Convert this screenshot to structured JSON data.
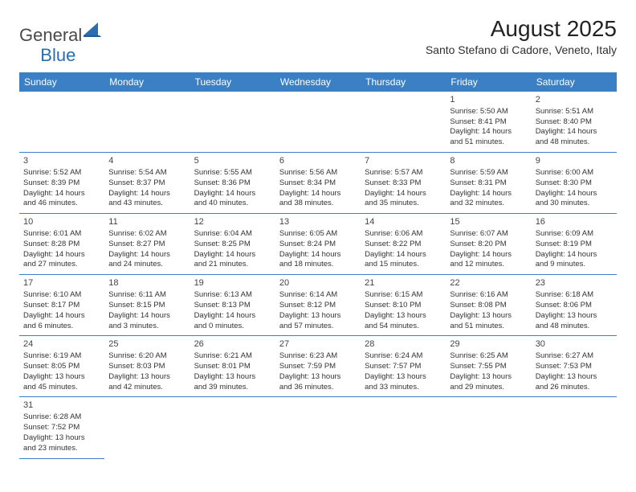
{
  "logo": {
    "general": "General",
    "blue": "Blue"
  },
  "title": "August 2025",
  "location": "Santo Stefano di Cadore, Veneto, Italy",
  "colors": {
    "header_bg": "#3b7fc4",
    "header_text": "#ffffff",
    "border": "#3b7fc4",
    "text": "#333333",
    "logo_blue": "#2a6db0"
  },
  "weekdays": [
    "Sunday",
    "Monday",
    "Tuesday",
    "Wednesday",
    "Thursday",
    "Friday",
    "Saturday"
  ],
  "weeks": [
    [
      null,
      null,
      null,
      null,
      null,
      {
        "d": "1",
        "sr": "Sunrise: 5:50 AM",
        "ss": "Sunset: 8:41 PM",
        "dl1": "Daylight: 14 hours",
        "dl2": "and 51 minutes."
      },
      {
        "d": "2",
        "sr": "Sunrise: 5:51 AM",
        "ss": "Sunset: 8:40 PM",
        "dl1": "Daylight: 14 hours",
        "dl2": "and 48 minutes."
      }
    ],
    [
      {
        "d": "3",
        "sr": "Sunrise: 5:52 AM",
        "ss": "Sunset: 8:39 PM",
        "dl1": "Daylight: 14 hours",
        "dl2": "and 46 minutes."
      },
      {
        "d": "4",
        "sr": "Sunrise: 5:54 AM",
        "ss": "Sunset: 8:37 PM",
        "dl1": "Daylight: 14 hours",
        "dl2": "and 43 minutes."
      },
      {
        "d": "5",
        "sr": "Sunrise: 5:55 AM",
        "ss": "Sunset: 8:36 PM",
        "dl1": "Daylight: 14 hours",
        "dl2": "and 40 minutes."
      },
      {
        "d": "6",
        "sr": "Sunrise: 5:56 AM",
        "ss": "Sunset: 8:34 PM",
        "dl1": "Daylight: 14 hours",
        "dl2": "and 38 minutes."
      },
      {
        "d": "7",
        "sr": "Sunrise: 5:57 AM",
        "ss": "Sunset: 8:33 PM",
        "dl1": "Daylight: 14 hours",
        "dl2": "and 35 minutes."
      },
      {
        "d": "8",
        "sr": "Sunrise: 5:59 AM",
        "ss": "Sunset: 8:31 PM",
        "dl1": "Daylight: 14 hours",
        "dl2": "and 32 minutes."
      },
      {
        "d": "9",
        "sr": "Sunrise: 6:00 AM",
        "ss": "Sunset: 8:30 PM",
        "dl1": "Daylight: 14 hours",
        "dl2": "and 30 minutes."
      }
    ],
    [
      {
        "d": "10",
        "sr": "Sunrise: 6:01 AM",
        "ss": "Sunset: 8:28 PM",
        "dl1": "Daylight: 14 hours",
        "dl2": "and 27 minutes."
      },
      {
        "d": "11",
        "sr": "Sunrise: 6:02 AM",
        "ss": "Sunset: 8:27 PM",
        "dl1": "Daylight: 14 hours",
        "dl2": "and 24 minutes."
      },
      {
        "d": "12",
        "sr": "Sunrise: 6:04 AM",
        "ss": "Sunset: 8:25 PM",
        "dl1": "Daylight: 14 hours",
        "dl2": "and 21 minutes."
      },
      {
        "d": "13",
        "sr": "Sunrise: 6:05 AM",
        "ss": "Sunset: 8:24 PM",
        "dl1": "Daylight: 14 hours",
        "dl2": "and 18 minutes."
      },
      {
        "d": "14",
        "sr": "Sunrise: 6:06 AM",
        "ss": "Sunset: 8:22 PM",
        "dl1": "Daylight: 14 hours",
        "dl2": "and 15 minutes."
      },
      {
        "d": "15",
        "sr": "Sunrise: 6:07 AM",
        "ss": "Sunset: 8:20 PM",
        "dl1": "Daylight: 14 hours",
        "dl2": "and 12 minutes."
      },
      {
        "d": "16",
        "sr": "Sunrise: 6:09 AM",
        "ss": "Sunset: 8:19 PM",
        "dl1": "Daylight: 14 hours",
        "dl2": "and 9 minutes."
      }
    ],
    [
      {
        "d": "17",
        "sr": "Sunrise: 6:10 AM",
        "ss": "Sunset: 8:17 PM",
        "dl1": "Daylight: 14 hours",
        "dl2": "and 6 minutes."
      },
      {
        "d": "18",
        "sr": "Sunrise: 6:11 AM",
        "ss": "Sunset: 8:15 PM",
        "dl1": "Daylight: 14 hours",
        "dl2": "and 3 minutes."
      },
      {
        "d": "19",
        "sr": "Sunrise: 6:13 AM",
        "ss": "Sunset: 8:13 PM",
        "dl1": "Daylight: 14 hours",
        "dl2": "and 0 minutes."
      },
      {
        "d": "20",
        "sr": "Sunrise: 6:14 AM",
        "ss": "Sunset: 8:12 PM",
        "dl1": "Daylight: 13 hours",
        "dl2": "and 57 minutes."
      },
      {
        "d": "21",
        "sr": "Sunrise: 6:15 AM",
        "ss": "Sunset: 8:10 PM",
        "dl1": "Daylight: 13 hours",
        "dl2": "and 54 minutes."
      },
      {
        "d": "22",
        "sr": "Sunrise: 6:16 AM",
        "ss": "Sunset: 8:08 PM",
        "dl1": "Daylight: 13 hours",
        "dl2": "and 51 minutes."
      },
      {
        "d": "23",
        "sr": "Sunrise: 6:18 AM",
        "ss": "Sunset: 8:06 PM",
        "dl1": "Daylight: 13 hours",
        "dl2": "and 48 minutes."
      }
    ],
    [
      {
        "d": "24",
        "sr": "Sunrise: 6:19 AM",
        "ss": "Sunset: 8:05 PM",
        "dl1": "Daylight: 13 hours",
        "dl2": "and 45 minutes."
      },
      {
        "d": "25",
        "sr": "Sunrise: 6:20 AM",
        "ss": "Sunset: 8:03 PM",
        "dl1": "Daylight: 13 hours",
        "dl2": "and 42 minutes."
      },
      {
        "d": "26",
        "sr": "Sunrise: 6:21 AM",
        "ss": "Sunset: 8:01 PM",
        "dl1": "Daylight: 13 hours",
        "dl2": "and 39 minutes."
      },
      {
        "d": "27",
        "sr": "Sunrise: 6:23 AM",
        "ss": "Sunset: 7:59 PM",
        "dl1": "Daylight: 13 hours",
        "dl2": "and 36 minutes."
      },
      {
        "d": "28",
        "sr": "Sunrise: 6:24 AM",
        "ss": "Sunset: 7:57 PM",
        "dl1": "Daylight: 13 hours",
        "dl2": "and 33 minutes."
      },
      {
        "d": "29",
        "sr": "Sunrise: 6:25 AM",
        "ss": "Sunset: 7:55 PM",
        "dl1": "Daylight: 13 hours",
        "dl2": "and 29 minutes."
      },
      {
        "d": "30",
        "sr": "Sunrise: 6:27 AM",
        "ss": "Sunset: 7:53 PM",
        "dl1": "Daylight: 13 hours",
        "dl2": "and 26 minutes."
      }
    ],
    [
      {
        "d": "31",
        "sr": "Sunrise: 6:28 AM",
        "ss": "Sunset: 7:52 PM",
        "dl1": "Daylight: 13 hours",
        "dl2": "and 23 minutes."
      },
      null,
      null,
      null,
      null,
      null,
      null
    ]
  ]
}
